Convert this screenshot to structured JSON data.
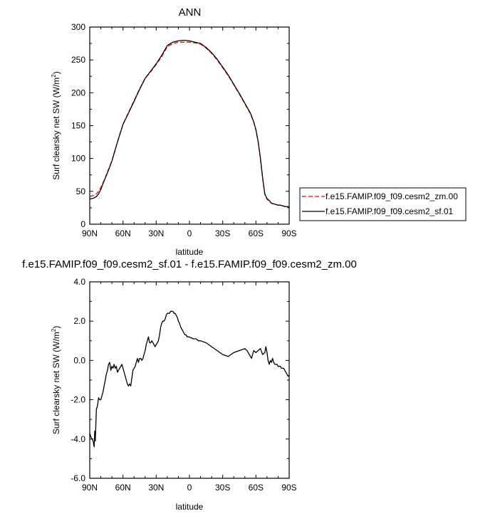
{
  "chart_data": [
    {
      "type": "line",
      "title": "ANN",
      "xlabel": "latitude",
      "ylabel": "Surf clearsky net SW (W/m",
      "ylabel_sup": "2",
      "ylabel_close": ")",
      "xlim": [
        90,
        -90
      ],
      "ylim": [
        0,
        300
      ],
      "xticks": [
        90,
        60,
        30,
        0,
        -30,
        -60,
        -90
      ],
      "xtick_labels": [
        "90N",
        "60N",
        "30N",
        "0",
        "30S",
        "60S",
        "90S"
      ],
      "yticks": [
        0,
        50,
        100,
        150,
        200,
        250,
        300
      ],
      "ytick_labels": [
        "0",
        "50",
        "100",
        "150",
        "200",
        "250",
        "300"
      ],
      "legend_position": "right",
      "series": [
        {
          "name": "f.e15.FAMIP.f09_f09.cesm2_zm.00",
          "color": "#ff0000",
          "dash": "dashed",
          "x": [
            90,
            88,
            86,
            84,
            82,
            80,
            78,
            75,
            72,
            70,
            65,
            60,
            55,
            50,
            45,
            40,
            35,
            30,
            25,
            20,
            15,
            10,
            5,
            0,
            -5,
            -10,
            -15,
            -20,
            -25,
            -30,
            -35,
            -40,
            -45,
            -50,
            -55,
            -58,
            -60,
            -62,
            -64,
            -66,
            -68,
            -70,
            -72,
            -74,
            -76,
            -78,
            -80,
            -82,
            -84,
            -86,
            -88,
            -90
          ],
          "y": [
            42,
            43,
            44,
            46,
            50,
            56,
            63,
            75,
            88,
            97,
            125,
            152,
            170,
            188,
            206,
            222,
            232,
            243,
            255,
            270,
            275,
            277,
            277,
            277,
            276,
            274,
            268,
            260,
            250,
            238,
            226,
            212,
            198,
            183,
            168,
            155,
            143,
            125,
            100,
            70,
            45,
            38,
            35,
            32,
            31,
            30,
            29,
            29,
            28,
            27,
            27,
            27
          ]
        },
        {
          "name": "f.e15.FAMIP.f09_f09.cesm2_sf.01",
          "color": "#000000",
          "dash": "solid",
          "x": [
            90,
            88,
            86,
            84,
            82,
            80,
            78,
            75,
            72,
            70,
            65,
            60,
            55,
            50,
            45,
            40,
            35,
            30,
            25,
            20,
            15,
            10,
            5,
            0,
            -5,
            -10,
            -15,
            -20,
            -25,
            -30,
            -35,
            -40,
            -45,
            -50,
            -55,
            -58,
            -60,
            -62,
            -64,
            -66,
            -68,
            -70,
            -72,
            -74,
            -76,
            -78,
            -80,
            -82,
            -84,
            -86,
            -88,
            -90
          ],
          "y": [
            38,
            39,
            40,
            42,
            46,
            53,
            62,
            74,
            87,
            96,
            125,
            152,
            169,
            187,
            205,
            222,
            233,
            244,
            257,
            272,
            277,
            279,
            280,
            279,
            277,
            275,
            269,
            261,
            251,
            239,
            227,
            213,
            199,
            184,
            169,
            156,
            144,
            126,
            101,
            71,
            46,
            39,
            36,
            32,
            31,
            30,
            29,
            29,
            28,
            27,
            27,
            26
          ]
        }
      ]
    },
    {
      "type": "line",
      "title": "f.e15.FAMIP.f09_f09.cesm2_sf.01 - f.e15.FAMIP.f09_f09.cesm2_zm.00",
      "xlabel": "latitude",
      "ylabel": "Surf clearsky net SW (W/m",
      "ylabel_sup": "2",
      "ylabel_close": ")",
      "xlim": [
        90,
        -90
      ],
      "ylim": [
        -6,
        4
      ],
      "xticks": [
        90,
        60,
        30,
        0,
        -30,
        -60,
        -90
      ],
      "xtick_labels": [
        "90N",
        "60N",
        "30N",
        "0",
        "30S",
        "60S",
        "90S"
      ],
      "yticks": [
        -6,
        -4,
        -2,
        0,
        2,
        4
      ],
      "ytick_labels": [
        "-6.0",
        "-4.0",
        "-2.0",
        "0.0",
        "2.0",
        "4.0"
      ],
      "series": [
        {
          "color": "#000000",
          "dash": "solid",
          "x": [
            90,
            89,
            88,
            87,
            86,
            85.5,
            85,
            84,
            83,
            82,
            81,
            80,
            79,
            78,
            77,
            76,
            75,
            74,
            73,
            72,
            71,
            70,
            69,
            68,
            67,
            66,
            65,
            64,
            63,
            62,
            61,
            60,
            59,
            58,
            57,
            56,
            55,
            54,
            53,
            52,
            51,
            50,
            49,
            48,
            47,
            46,
            45,
            44,
            43,
            42,
            41,
            40,
            39,
            38,
            37,
            36,
            35,
            34,
            33,
            32,
            31,
            30,
            29,
            28,
            27,
            26,
            25,
            24,
            23,
            22,
            21,
            20,
            19,
            18,
            17,
            16,
            15,
            14,
            13,
            12,
            11,
            10,
            9,
            8,
            7,
            6,
            5,
            4,
            3,
            2,
            1,
            0,
            -1,
            -2,
            -3,
            -4,
            -5,
            -6,
            -7,
            -8,
            -9,
            -10,
            -15,
            -20,
            -25,
            -30,
            -35,
            -40,
            -45,
            -50,
            -52,
            -54,
            -56,
            -58,
            -60,
            -62,
            -64,
            -66,
            -68,
            -69,
            -70,
            -71,
            -72,
            -73,
            -74,
            -75,
            -76,
            -77,
            -78,
            -79,
            -80,
            -81,
            -82,
            -83,
            -84,
            -85,
            -86,
            -87,
            -88,
            -89,
            -90
          ],
          "y": [
            -3.7,
            -3.9,
            -4.0,
            -4.1,
            -4.4,
            -3.6,
            -4.1,
            -2.5,
            -2.3,
            -1.9,
            -2.0,
            -2.0,
            -1.8,
            -1.6,
            -1.3,
            -1.0,
            -0.7,
            -0.5,
            -0.2,
            -0.1,
            -0.5,
            -0.3,
            -0.4,
            -0.2,
            -0.4,
            -0.3,
            -0.6,
            -0.5,
            -0.4,
            -0.3,
            -0.2,
            -0.4,
            -0.6,
            -0.8,
            -1.0,
            -1.2,
            -1.3,
            -1.2,
            -1.3,
            -0.9,
            -0.5,
            -0.4,
            -0.3,
            -0.1,
            0.1,
            -0.1,
            0.1,
            0.1,
            0.0,
            0.1,
            0.3,
            0.5,
            0.8,
            1.0,
            1.2,
            0.9,
            0.9,
            1.0,
            0.9,
            0.8,
            0.7,
            0.8,
            0.9,
            1.0,
            1.3,
            1.7,
            1.9,
            2.0,
            2.0,
            2.1,
            2.3,
            2.4,
            2.4,
            2.4,
            2.5,
            2.5,
            2.5,
            2.4,
            2.4,
            2.3,
            2.2,
            2.0,
            1.9,
            1.7,
            1.6,
            1.5,
            1.4,
            1.3,
            1.3,
            1.2,
            1.2,
            1.2,
            1.15,
            1.15,
            1.1,
            1.1,
            1.1,
            1.1,
            1.05,
            1.0,
            1.0,
            1.0,
            0.9,
            0.7,
            0.5,
            0.3,
            0.2,
            0.4,
            0.5,
            0.6,
            0.5,
            0.3,
            0.1,
            0.5,
            0.4,
            0.5,
            0.6,
            0.3,
            0.4,
            0.7,
            0.4,
            0.0,
            -0.2,
            0.0,
            -0.1,
            0.1,
            -0.1,
            -0.2,
            -0.2,
            -0.2,
            -0.3,
            -0.3,
            -0.3,
            -0.4,
            -0.4,
            -0.4,
            -0.5,
            -0.6,
            -0.7,
            -0.8,
            -0.75
          ]
        }
      ]
    }
  ]
}
